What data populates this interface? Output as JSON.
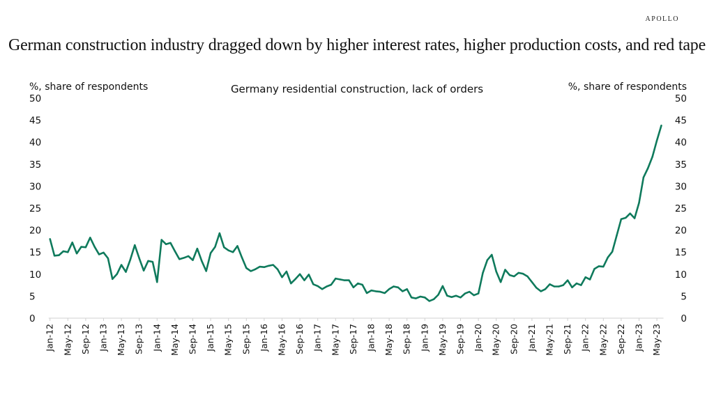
{
  "brand": "APOLLO",
  "title": "German construction industry dragged down by higher interest rates, higher production costs, and red tape",
  "chart_data": {
    "type": "line",
    "title": "Germany residential construction, lack of orders",
    "ylabel_left": "%, share of respondents",
    "ylabel_right": "%, share of respondents",
    "ylim": [
      0,
      50
    ],
    "yticks": [
      0,
      5,
      10,
      15,
      20,
      25,
      30,
      35,
      40,
      45,
      50
    ],
    "x_start": "Jan-12",
    "x_end": "Jun-23",
    "x_frequency": "monthly",
    "x_tick_labels": [
      "Jan-12",
      "May-12",
      "Sep-12",
      "Jan-13",
      "May-13",
      "Sep-13",
      "Jan-14",
      "May-14",
      "Sep-14",
      "Jan-15",
      "May-15",
      "Sep-15",
      "Jan-16",
      "May-16",
      "Sep-16",
      "Jan-17",
      "May-17",
      "Sep-17",
      "Jan-18",
      "May-18",
      "Sep-18",
      "Jan-19",
      "May-19",
      "Sep-19",
      "Jan-20",
      "May-20",
      "Sep-20",
      "Jan-21",
      "May-21",
      "Sep-21",
      "Jan-22",
      "May-22",
      "Sep-22",
      "Jan-23",
      "May-23"
    ],
    "grid": false,
    "line_color": "#0f7a5c",
    "values": [
      18,
      14.2,
      14.3,
      15.2,
      15,
      17.2,
      14.7,
      16.2,
      16.1,
      18.3,
      16.2,
      14.5,
      14.9,
      13.6,
      8.9,
      10,
      12.1,
      10.5,
      13.3,
      16.6,
      13.6,
      10.8,
      13,
      12.8,
      8.2,
      17.8,
      16.8,
      17.1,
      15.2,
      13.4,
      13.7,
      14.1,
      13.2,
      15.8,
      13.0,
      10.7,
      14.8,
      16.2,
      19.3,
      16.1,
      15.4,
      15,
      16.4,
      13.8,
      11.4,
      10.7,
      11.1,
      11.7,
      11.6,
      11.9,
      12.1,
      11.1,
      9.3,
      10.6,
      7.9,
      8.9,
      10.0,
      8.6,
      9.9,
      7.7,
      7.3,
      6.6,
      7.2,
      7.6,
      9.0,
      8.8,
      8.6,
      8.6,
      7.0,
      7.9,
      7.6,
      5.7,
      6.3,
      6.1,
      6.0,
      5.7,
      6.6,
      7.2,
      7.0,
      6.1,
      6.6,
      4.7,
      4.5,
      4.9,
      4.7,
      3.9,
      4.3,
      5.3,
      7.3,
      5.1,
      4.8,
      5.1,
      4.7,
      5.6,
      6.0,
      5.2,
      5.6,
      10.3,
      13.2,
      14.4,
      10.6,
      8.2,
      11.0,
      9.8,
      9.5,
      10.3,
      10.1,
      9.5,
      8.2,
      6.9,
      6.1,
      6.6,
      7.7,
      7.2,
      7.2,
      7.5,
      8.6,
      7.0,
      7.9,
      7.5,
      9.3,
      8.8,
      11.2,
      11.8,
      11.7,
      13.8,
      15.1,
      18.8,
      22.5,
      22.8,
      23.8,
      22.7,
      26.2,
      32.0,
      34.1,
      36.7,
      40.4,
      43.8
    ]
  }
}
